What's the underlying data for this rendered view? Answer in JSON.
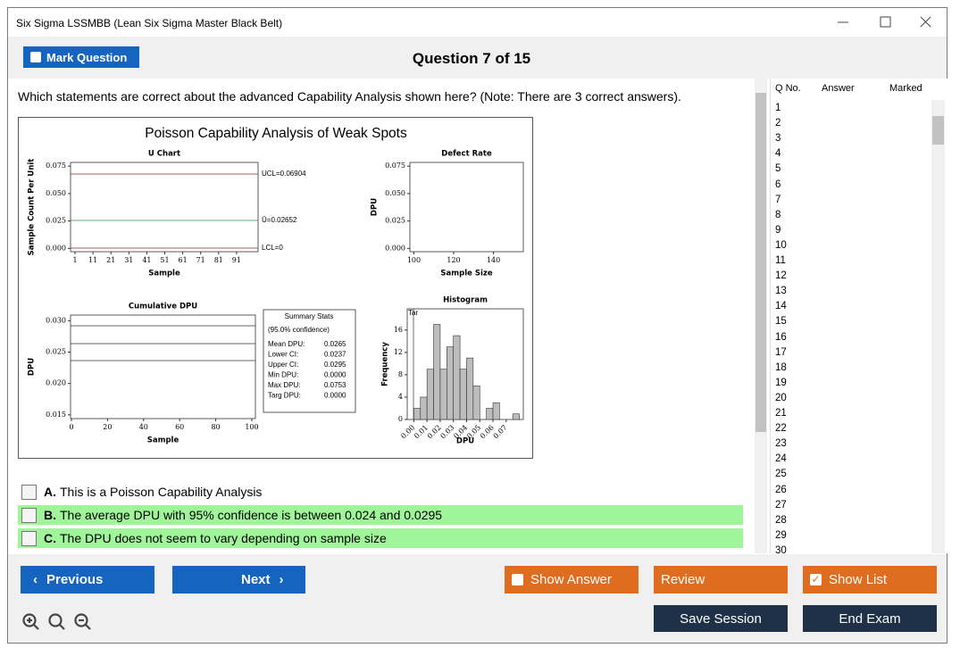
{
  "window": {
    "title": "Six Sigma LSSMBB (Lean Six Sigma Master Black Belt)"
  },
  "toolbar": {
    "mark_question": "Mark Question",
    "question_counter": "Question 7 of 15"
  },
  "question": {
    "text": "Which statements are correct about the advanced Capability Analysis shown here? (Note: There are 3 correct answers).",
    "figure": {
      "title": "Poisson Capability Analysis of Weak Spots",
      "u_chart": {
        "title": "U Chart",
        "xlabel": "Sample",
        "ylabel": "Sample Count Per Unit",
        "xlim": [
          -1.5,
          103
        ],
        "ylim": [
          -0.003,
          0.0784
        ],
        "xticks": [
          1,
          11,
          21,
          31,
          41,
          51,
          61,
          71,
          81,
          91
        ],
        "yticks": [
          {
            "value": 0,
            "label": "0.000"
          },
          0.025,
          {
            "value": 0.05,
            "label": "0.050"
          },
          0.075
        ],
        "limit_labels": [
          "UCL=0.06904",
          "Ū=0.02652",
          "LCL=0"
        ]
      },
      "defect_rate": {
        "title": "Defect Rate",
        "xlabel": "Sample Size",
        "ylabel": "DPU",
        "xlim": [
          98,
          155
        ],
        "ylim": [
          -0.003,
          0.0784
        ],
        "xticks": [
          100,
          120,
          140
        ],
        "yticks": [
          {
            "value": 0,
            "label": "0.000"
          },
          0.025,
          {
            "value": 0.05,
            "label": "0.050"
          },
          0.075
        ]
      },
      "cumulative_dpu": {
        "title": "Cumulative DPU",
        "xlabel": "Sample",
        "ylabel": "DPU",
        "xlim": [
          -0.5,
          102
        ],
        "ylim": [
          0.0144,
          0.0309
        ],
        "xticks": [
          0,
          20,
          40,
          60,
          80,
          100
        ],
        "yticks": [
          0.015,
          {
            "value": 0.02,
            "label": "0.020"
          },
          0.025,
          {
            "value": 0.03,
            "label": "0.030"
          }
        ]
      },
      "summary_stats": {
        "title": "Summary Stats",
        "subtitle": "(95.0% confidence)",
        "rows": [
          [
            "Mean DPU:",
            "0.0265"
          ],
          [
            "Lower CI:",
            "0.0237"
          ],
          [
            "Upper CI:",
            "0.0295"
          ],
          [
            "Min DPU:",
            "0.0000"
          ],
          [
            "Max DPU:",
            "0.0753"
          ],
          [
            "Targ DPU:",
            "0.0000"
          ]
        ]
      },
      "histogram": {
        "type": "histogram",
        "title": "Histogram",
        "xlabel": "DPU",
        "ylabel": "Frequency",
        "target_label": "Tar",
        "xlim": [
          -0.005,
          0.083
        ],
        "ylim": [
          0,
          19.8
        ],
        "xticks": [
          {
            "value": 0,
            "label": "0.00"
          },
          0.01,
          0.02,
          0.03,
          0.04,
          0.05,
          0.06,
          0.07
        ],
        "yticks": [
          0,
          4,
          8,
          12,
          16
        ],
        "bins": [
          0,
          0.005,
          0.01,
          0.015,
          0.02,
          0.025,
          0.03,
          0.035,
          0.04,
          0.045,
          0.05,
          0.055,
          0.06,
          0.065,
          0.07,
          0.075,
          0.08
        ],
        "values": [
          2,
          4,
          9,
          17,
          9,
          13,
          15,
          9,
          11,
          6,
          0,
          2,
          3,
          0,
          0,
          1
        ],
        "color": "#bdbdbd"
      }
    },
    "options": [
      {
        "letter": "A.",
        "text": "This is a Poisson Capability Analysis",
        "highlight": false
      },
      {
        "letter": "B.",
        "text": "The average DPU with 95% confidence is between 0.024 and 0.0295",
        "highlight": true
      },
      {
        "letter": "C.",
        "text": "The DPU does not seem to vary depending on sample size",
        "highlight": true
      }
    ]
  },
  "question_list": {
    "headers": [
      "Q No.",
      "Answer",
      "Marked"
    ],
    "rows": [
      1,
      2,
      3,
      4,
      5,
      6,
      7,
      8,
      9,
      10,
      11,
      12,
      13,
      14,
      15,
      16,
      17,
      18,
      19,
      20,
      21,
      22,
      23,
      24,
      25,
      26,
      27,
      28,
      29,
      30
    ]
  },
  "buttons": {
    "previous": "Previous",
    "next": "Next",
    "show_answer": "Show Answer",
    "review": "Review",
    "show_list": "Show List",
    "save_session": "Save Session",
    "end_exam": "End Exam"
  }
}
